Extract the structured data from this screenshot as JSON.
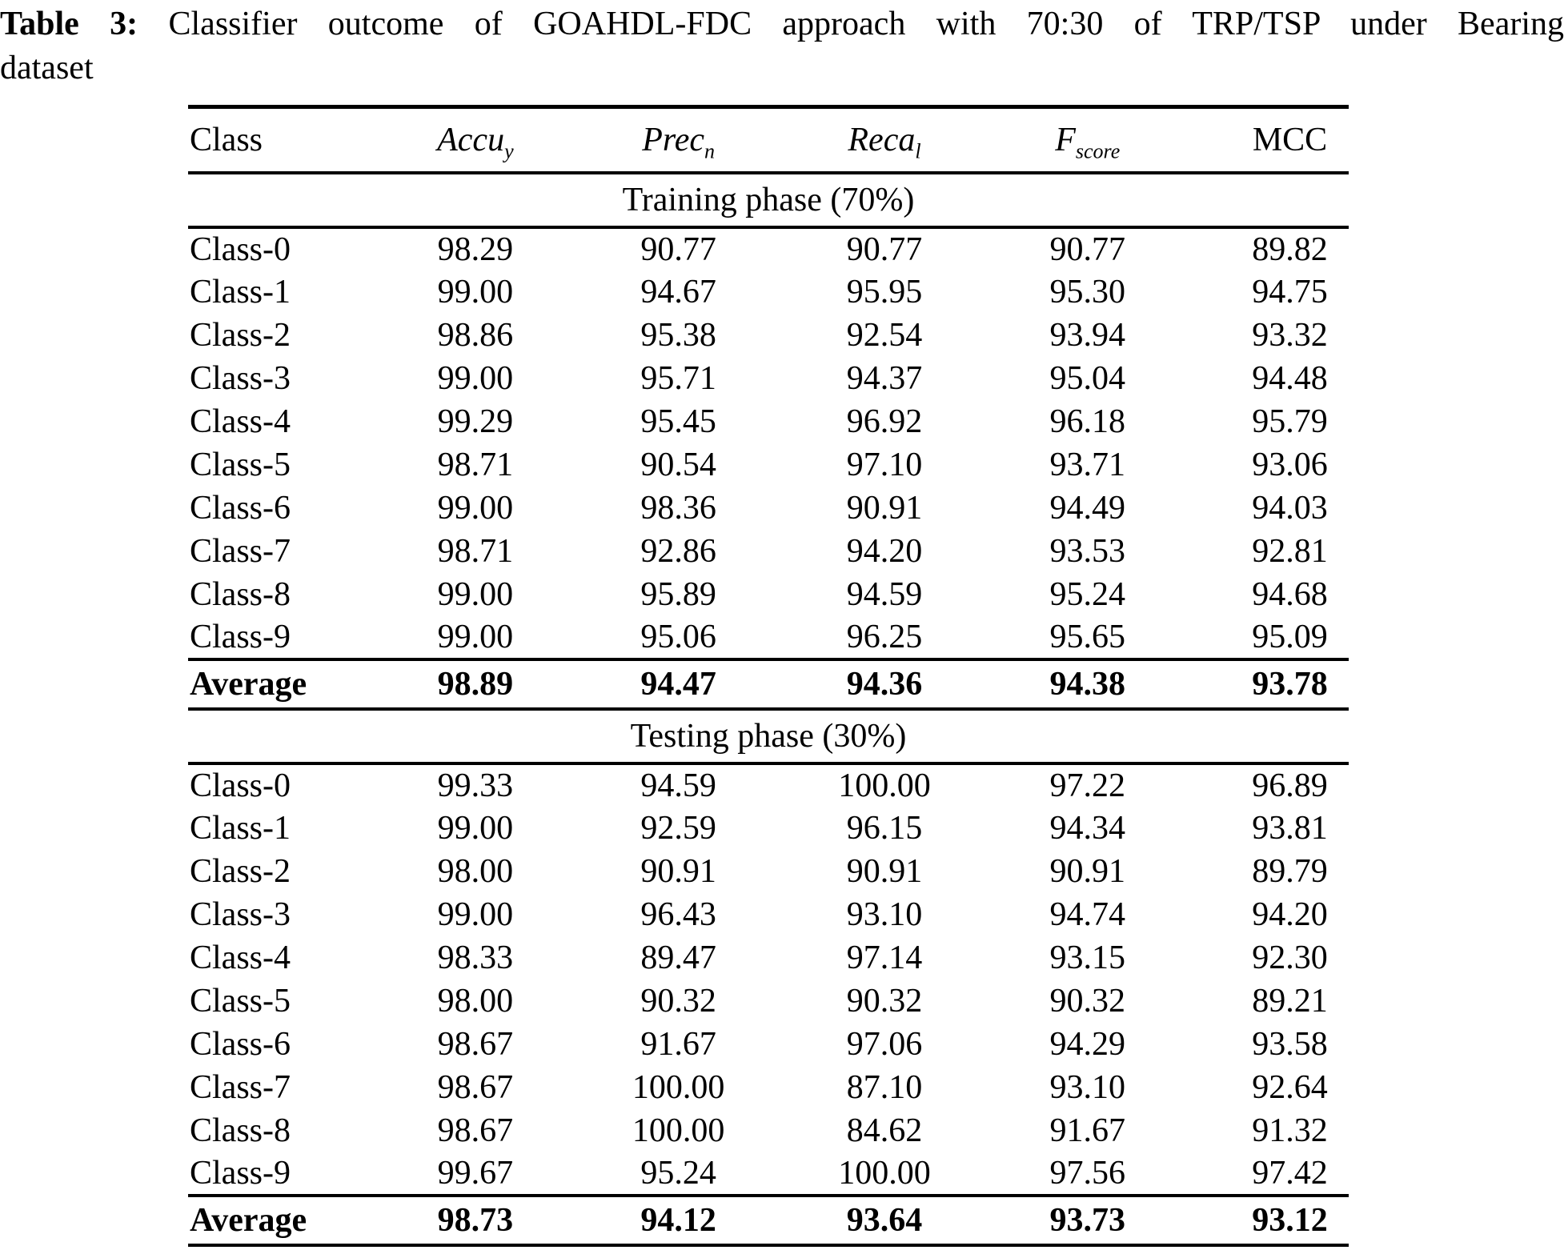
{
  "title": {
    "label": "Table 3:",
    "line1_rest": "Classifier outcome of GOAHDL-FDC approach with 70:30 of TRP/TSP under Bearing",
    "line2": "dataset"
  },
  "colors": {
    "text": "#000000",
    "background": "#ffffff",
    "rule": "#000000"
  },
  "table": {
    "columns": [
      {
        "base": "Class",
        "sub": "",
        "italic": false
      },
      {
        "base": "Accu",
        "sub": "y",
        "italic": true
      },
      {
        "base": "Prec",
        "sub": "n",
        "italic": true
      },
      {
        "base": "Reca",
        "sub": "l",
        "italic": true
      },
      {
        "base": "F",
        "sub": "score",
        "italic": true
      },
      {
        "base": "MCC",
        "sub": "",
        "italic": false
      }
    ],
    "sections": [
      {
        "header": "Training phase (70%)",
        "rows": [
          [
            "Class-0",
            "98.29",
            "90.77",
            "90.77",
            "90.77",
            "89.82"
          ],
          [
            "Class-1",
            "99.00",
            "94.67",
            "95.95",
            "95.30",
            "94.75"
          ],
          [
            "Class-2",
            "98.86",
            "95.38",
            "92.54",
            "93.94",
            "93.32"
          ],
          [
            "Class-3",
            "99.00",
            "95.71",
            "94.37",
            "95.04",
            "94.48"
          ],
          [
            "Class-4",
            "99.29",
            "95.45",
            "96.92",
            "96.18",
            "95.79"
          ],
          [
            "Class-5",
            "98.71",
            "90.54",
            "97.10",
            "93.71",
            "93.06"
          ],
          [
            "Class-6",
            "99.00",
            "98.36",
            "90.91",
            "94.49",
            "94.03"
          ],
          [
            "Class-7",
            "98.71",
            "92.86",
            "94.20",
            "93.53",
            "92.81"
          ],
          [
            "Class-8",
            "99.00",
            "95.89",
            "94.59",
            "95.24",
            "94.68"
          ],
          [
            "Class-9",
            "99.00",
            "95.06",
            "96.25",
            "95.65",
            "95.09"
          ]
        ],
        "average": [
          "Average",
          "98.89",
          "94.47",
          "94.36",
          "94.38",
          "93.78"
        ]
      },
      {
        "header": "Testing phase (30%)",
        "rows": [
          [
            "Class-0",
            "99.33",
            "94.59",
            "100.00",
            "97.22",
            "96.89"
          ],
          [
            "Class-1",
            "99.00",
            "92.59",
            "96.15",
            "94.34",
            "93.81"
          ],
          [
            "Class-2",
            "98.00",
            "90.91",
            "90.91",
            "90.91",
            "89.79"
          ],
          [
            "Class-3",
            "99.00",
            "96.43",
            "93.10",
            "94.74",
            "94.20"
          ],
          [
            "Class-4",
            "98.33",
            "89.47",
            "97.14",
            "93.15",
            "92.30"
          ],
          [
            "Class-5",
            "98.00",
            "90.32",
            "90.32",
            "90.32",
            "89.21"
          ],
          [
            "Class-6",
            "98.67",
            "91.67",
            "97.06",
            "94.29",
            "93.58"
          ],
          [
            "Class-7",
            "98.67",
            "100.00",
            "87.10",
            "93.10",
            "92.64"
          ],
          [
            "Class-8",
            "98.67",
            "100.00",
            "84.62",
            "91.67",
            "91.32"
          ],
          [
            "Class-9",
            "99.67",
            "95.24",
            "100.00",
            "97.56",
            "97.42"
          ]
        ],
        "average": [
          "Average",
          "98.73",
          "94.12",
          "93.64",
          "93.73",
          "93.12"
        ]
      }
    ]
  }
}
